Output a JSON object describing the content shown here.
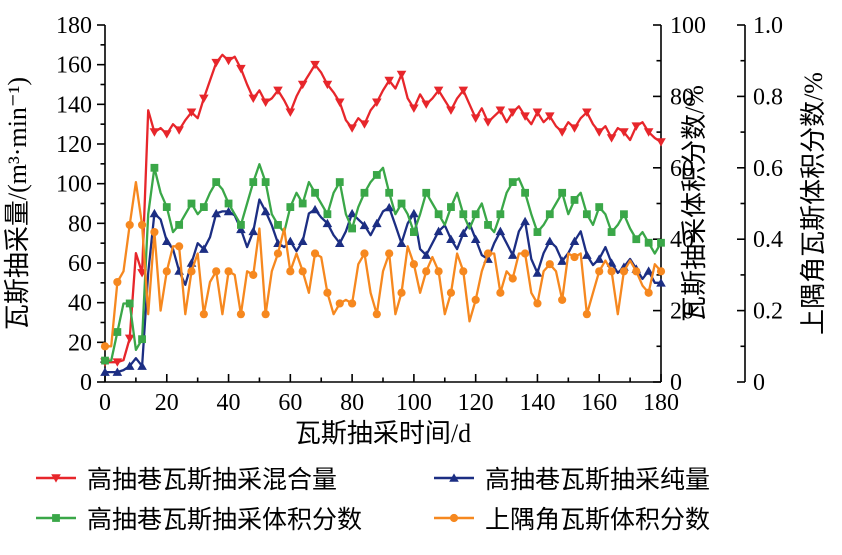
{
  "figure": {
    "background": "#ffffff",
    "text_color": "#000000"
  },
  "chart_data": {
    "type": "line",
    "title": "",
    "xlabel": "瓦斯抽采时间/d",
    "x_range": [
      0,
      180
    ],
    "x_ticks": [
      "0",
      "20",
      "40",
      "60",
      "80",
      "100",
      "120",
      "140",
      "160",
      "180"
    ],
    "x_start": 0,
    "x_step": 2,
    "grid": false,
    "legend_position": "bottom",
    "axes": {
      "left": {
        "title": "瓦斯抽采量/(m³·min⁻¹)",
        "range": [
          0,
          180
        ],
        "ticks": [
          "0",
          "20",
          "40",
          "60",
          "80",
          "100",
          "120",
          "140",
          "160",
          "180"
        ]
      },
      "right1": {
        "title": "瓦斯抽采体积分数/%",
        "range": [
          0,
          100
        ],
        "ticks": [
          "0",
          "20",
          "40",
          "60",
          "80",
          "100"
        ]
      },
      "right2": {
        "title": "上隅角瓦斯体积分数/%",
        "range": [
          0,
          1.0
        ],
        "ticks": [
          "0",
          "0.2",
          "0.4",
          "0.6",
          "0.8",
          "1.0"
        ]
      }
    },
    "series": [
      {
        "name": "高抽巷瓦斯抽采混合量",
        "axis": "left",
        "color": "#e7262b",
        "marker": "triangle-down",
        "values": [
          10,
          10,
          10,
          11,
          22,
          65,
          55,
          137,
          126,
          128,
          125,
          130,
          127,
          132,
          136,
          133,
          143,
          152,
          161,
          165,
          162,
          164,
          158,
          150,
          143,
          147,
          141,
          143,
          147,
          142,
          136,
          144,
          150,
          155,
          160,
          156,
          150,
          146,
          141,
          132,
          128,
          133,
          130,
          137,
          141,
          147,
          152,
          148,
          155,
          143,
          138,
          145,
          140,
          143,
          147,
          142,
          137,
          143,
          147,
          140,
          133,
          138,
          131,
          134,
          137,
          131,
          136,
          139,
          134,
          130,
          136,
          131,
          134,
          129,
          126,
          131,
          128,
          133,
          136,
          130,
          126,
          129,
          123,
          128,
          126,
          122,
          129,
          131,
          126,
          123,
          121
        ]
      },
      {
        "name": "高抽巷瓦斯抽采纯量",
        "axis": "left",
        "color": "#1c2e83",
        "marker": "triangle-up",
        "values": [
          5,
          5,
          5,
          6,
          8,
          12,
          8,
          55,
          85,
          82,
          71,
          67,
          56,
          49,
          60,
          70,
          67,
          73,
          85,
          86,
          86,
          84,
          77,
          68,
          76,
          92,
          86,
          79,
          70,
          68,
          71,
          66,
          71,
          85,
          87,
          83,
          80,
          74,
          70,
          76,
          85,
          82,
          79,
          74,
          80,
          86,
          88,
          79,
          70,
          80,
          85,
          67,
          64,
          70,
          76,
          79,
          72,
          67,
          75,
          80,
          72,
          64,
          62,
          70,
          76,
          70,
          64,
          76,
          81,
          62,
          55,
          65,
          71,
          68,
          61,
          65,
          71,
          76,
          64,
          59,
          62,
          68,
          60,
          55,
          58,
          62,
          57,
          52,
          56,
          50,
          50
        ]
      },
      {
        "name": "高抽巷瓦斯抽采体积分数",
        "axis": "right1",
        "color": "#3aa748",
        "marker": "square",
        "values": [
          6,
          6,
          14,
          22,
          22,
          9,
          12,
          47,
          60,
          53,
          49,
          42,
          44,
          47,
          50,
          47,
          49,
          53,
          56,
          54,
          50,
          47,
          44,
          50,
          56,
          61,
          56,
          47,
          44,
          42,
          49,
          53,
          50,
          56,
          53,
          50,
          47,
          53,
          56,
          47,
          43,
          49,
          53,
          56,
          58,
          60,
          53,
          47,
          50,
          47,
          42,
          47,
          53,
          50,
          47,
          44,
          49,
          53,
          47,
          43,
          47,
          50,
          44,
          42,
          47,
          53,
          56,
          57,
          53,
          47,
          42,
          44,
          47,
          50,
          53,
          47,
          51,
          53,
          47,
          44,
          49,
          47,
          42,
          44,
          47,
          43,
          40,
          42,
          39,
          36,
          39
        ]
      },
      {
        "name": "上隅角瓦斯体积分数",
        "axis": "right2",
        "color": "#f6881f",
        "marker": "circle",
        "values": [
          0.1,
          0.1,
          0.28,
          0.31,
          0.44,
          0.56,
          0.44,
          0.19,
          0.42,
          0.2,
          0.31,
          0.38,
          0.38,
          0.19,
          0.31,
          0.36,
          0.19,
          0.28,
          0.31,
          0.19,
          0.31,
          0.3,
          0.19,
          0.31,
          0.3,
          0.43,
          0.19,
          0.31,
          0.36,
          0.43,
          0.31,
          0.36,
          0.31,
          0.25,
          0.36,
          0.35,
          0.25,
          0.19,
          0.22,
          0.23,
          0.22,
          0.33,
          0.36,
          0.25,
          0.19,
          0.31,
          0.36,
          0.19,
          0.25,
          0.38,
          0.33,
          0.25,
          0.31,
          0.35,
          0.31,
          0.19,
          0.25,
          0.36,
          0.31,
          0.17,
          0.23,
          0.31,
          0.36,
          0.36,
          0.25,
          0.31,
          0.29,
          0.36,
          0.36,
          0.25,
          0.22,
          0.31,
          0.33,
          0.31,
          0.23,
          0.36,
          0.35,
          0.36,
          0.19,
          0.25,
          0.31,
          0.34,
          0.31,
          0.19,
          0.31,
          0.34,
          0.31,
          0.27,
          0.25,
          0.33,
          0.31
        ]
      }
    ]
  }
}
